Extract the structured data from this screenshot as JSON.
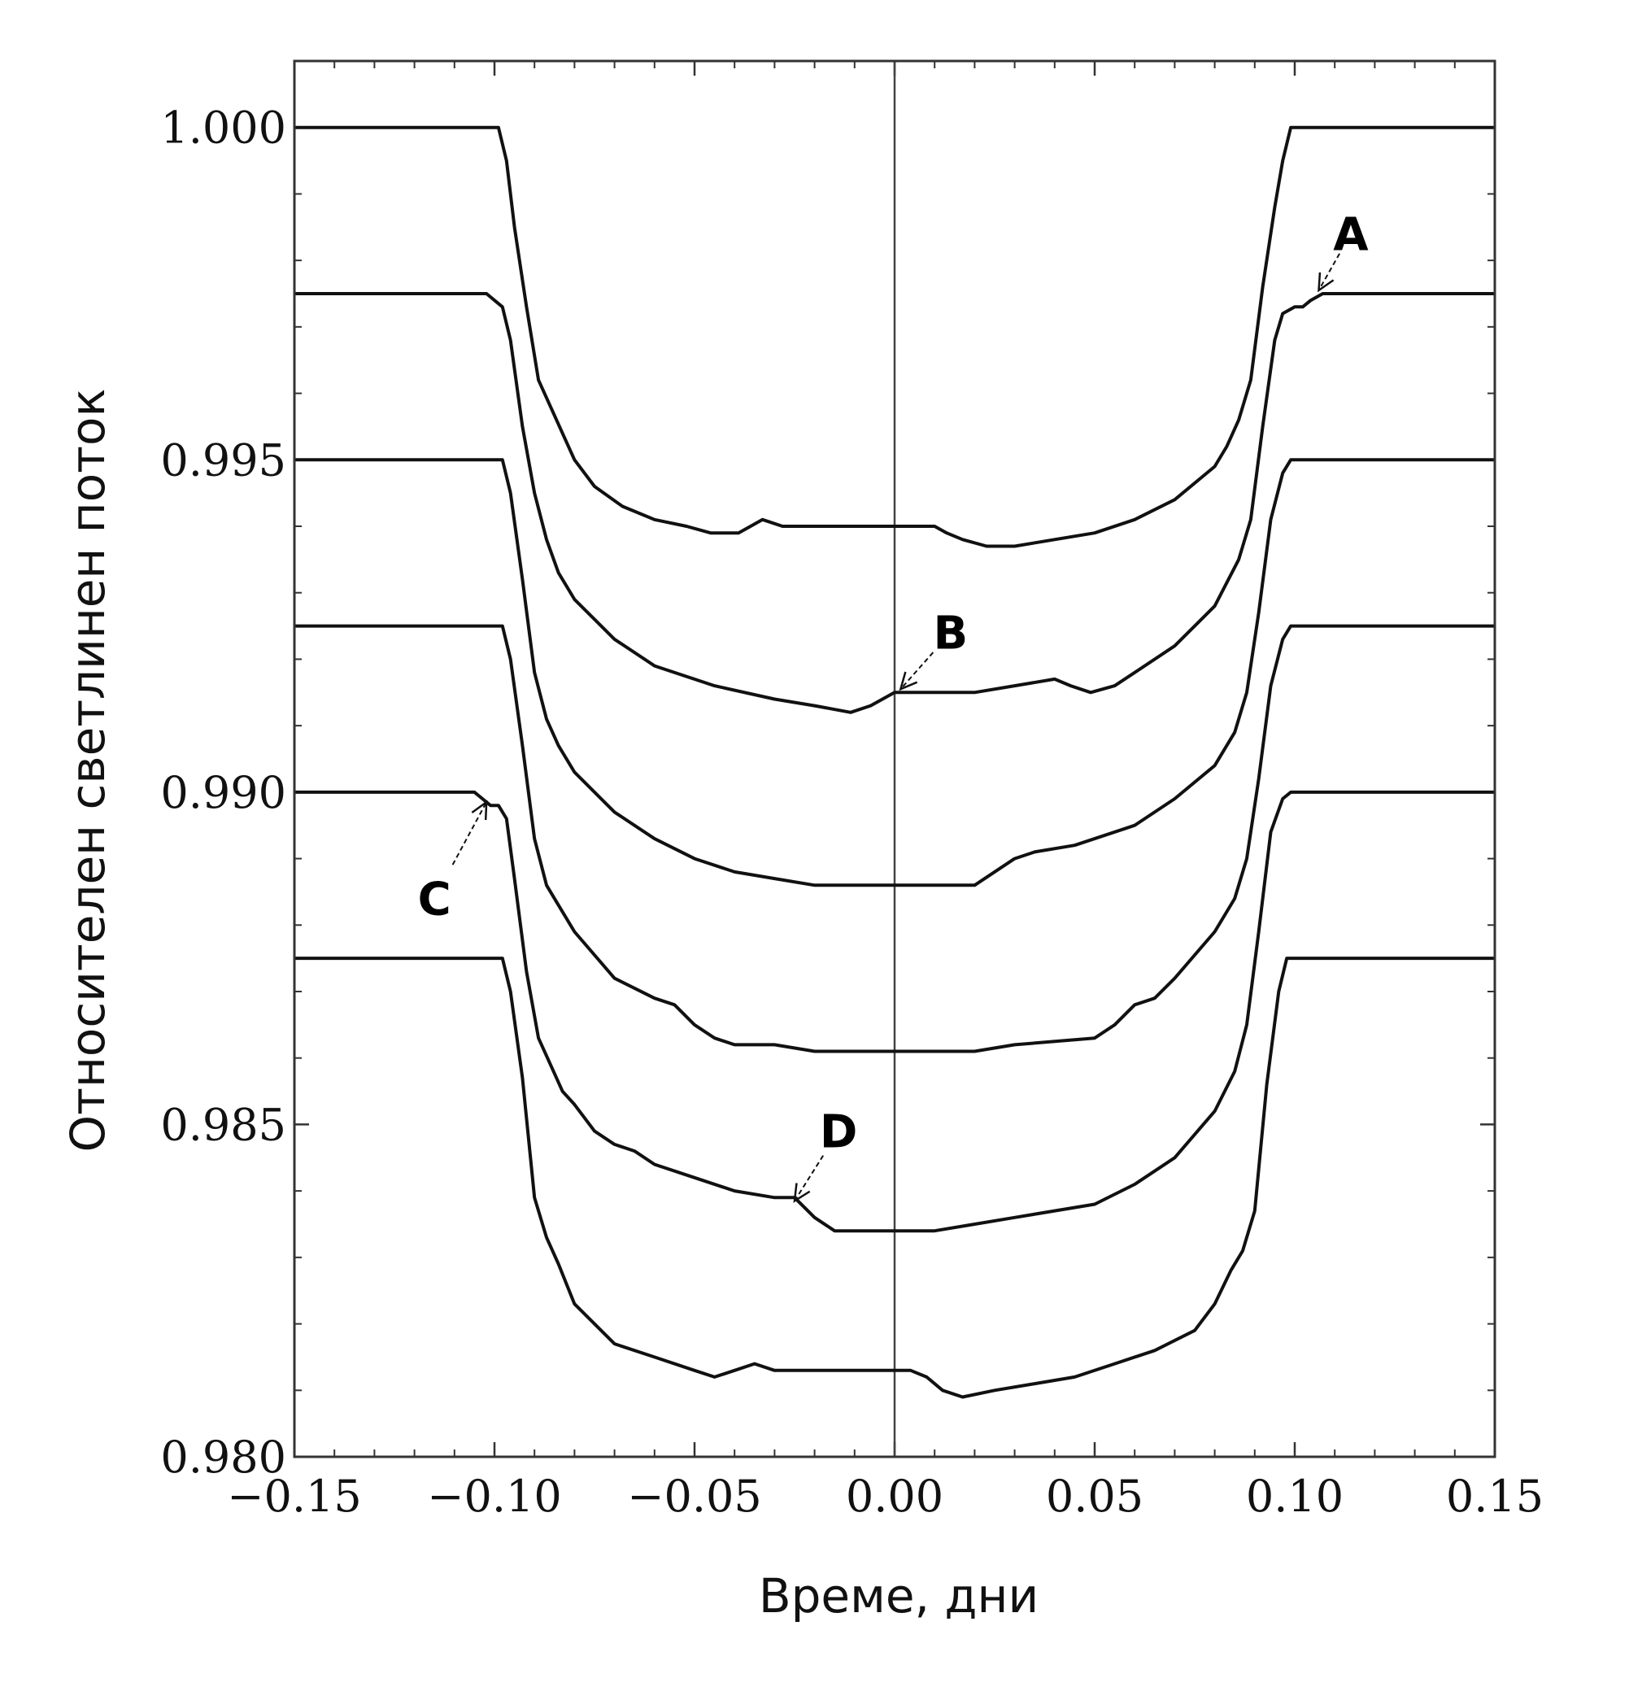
{
  "chart_data": {
    "type": "line",
    "title": "",
    "xlabel": "Време, дни",
    "ylabel": "Относителен светлинен поток",
    "xlim": [
      -0.15,
      0.15
    ],
    "ylim": [
      0.98,
      1.001
    ],
    "x_ticks": [
      -0.15,
      -0.1,
      -0.05,
      0.0,
      0.05,
      0.1,
      0.15
    ],
    "x_tick_labels": [
      "−0.15",
      "−0.10",
      "−0.05",
      "0.00",
      "0.05",
      "0.10",
      "0.15"
    ],
    "y_ticks": [
      0.98,
      0.985,
      0.99,
      0.995,
      1.0
    ],
    "y_tick_labels": [
      "0.980",
      "0.985",
      "0.990",
      "0.995",
      "1.000"
    ],
    "grid": false,
    "vertical_line_x": 0.0,
    "series": [
      {
        "x": [
          -0.15,
          -0.099,
          -0.097,
          -0.095,
          -0.092,
          -0.089,
          -0.086,
          -0.083,
          -0.08,
          -0.075,
          -0.068,
          -0.06,
          -0.052,
          -0.046,
          -0.039,
          -0.036,
          -0.033,
          -0.028,
          -0.02,
          -0.01,
          0.0,
          0.005,
          0.01,
          0.013,
          0.017,
          0.023,
          0.03,
          0.04,
          0.05,
          0.06,
          0.07,
          0.08,
          0.083,
          0.086,
          0.089,
          0.092,
          0.095,
          0.097,
          0.099,
          0.15
        ],
        "y": [
          1.0,
          1.0,
          0.9995,
          0.9985,
          0.9973,
          0.9962,
          0.9958,
          0.9954,
          0.995,
          0.9946,
          0.9943,
          0.9941,
          0.994,
          0.9939,
          0.9939,
          0.994,
          0.9941,
          0.994,
          0.994,
          0.994,
          0.994,
          0.994,
          0.994,
          0.9939,
          0.9938,
          0.9937,
          0.9937,
          0.9938,
          0.9939,
          0.9941,
          0.9944,
          0.9949,
          0.9952,
          0.9956,
          0.9962,
          0.9976,
          0.9988,
          0.9995,
          1.0,
          1.0
        ]
      },
      {
        "x": [
          -0.15,
          -0.102,
          -0.1,
          -0.098,
          -0.096,
          -0.093,
          -0.09,
          -0.087,
          -0.084,
          -0.08,
          -0.07,
          -0.06,
          -0.045,
          -0.03,
          -0.02,
          -0.011,
          -0.006,
          0.0,
          0.01,
          0.02,
          0.03,
          0.04,
          0.044,
          0.049,
          0.055,
          0.06,
          0.07,
          0.08,
          0.086,
          0.089,
          0.092,
          0.095,
          0.097,
          0.1,
          0.102,
          0.104,
          0.107,
          0.15
        ],
        "y": [
          0.9975,
          0.9975,
          0.9974,
          0.9973,
          0.9968,
          0.9955,
          0.9945,
          0.9938,
          0.9933,
          0.9929,
          0.9923,
          0.9919,
          0.9916,
          0.9914,
          0.9913,
          0.9912,
          0.9913,
          0.9915,
          0.9915,
          0.9915,
          0.9916,
          0.9917,
          0.9916,
          0.9915,
          0.9916,
          0.9918,
          0.9922,
          0.9928,
          0.9935,
          0.9941,
          0.9955,
          0.9968,
          0.9972,
          0.9973,
          0.9973,
          0.9974,
          0.9975,
          0.9975
        ]
      },
      {
        "x": [
          -0.15,
          -0.098,
          -0.096,
          -0.093,
          -0.09,
          -0.087,
          -0.084,
          -0.08,
          -0.07,
          -0.06,
          -0.05,
          -0.04,
          -0.03,
          -0.02,
          -0.01,
          0.0,
          0.01,
          0.02,
          0.025,
          0.03,
          0.035,
          0.045,
          0.06,
          0.07,
          0.08,
          0.085,
          0.088,
          0.091,
          0.094,
          0.097,
          0.099,
          0.15
        ],
        "y": [
          0.995,
          0.995,
          0.9945,
          0.9932,
          0.9918,
          0.9911,
          0.9907,
          0.9903,
          0.9897,
          0.9893,
          0.989,
          0.9888,
          0.9887,
          0.9886,
          0.9886,
          0.9886,
          0.9886,
          0.9886,
          0.9888,
          0.989,
          0.9891,
          0.9892,
          0.9895,
          0.9899,
          0.9904,
          0.9909,
          0.9915,
          0.9927,
          0.9941,
          0.9948,
          0.995,
          0.995
        ]
      },
      {
        "x": [
          -0.15,
          -0.098,
          -0.096,
          -0.093,
          -0.09,
          -0.087,
          -0.084,
          -0.08,
          -0.07,
          -0.06,
          -0.055,
          -0.05,
          -0.045,
          -0.04,
          -0.03,
          -0.02,
          -0.01,
          0.0,
          0.01,
          0.02,
          0.03,
          0.05,
          0.055,
          0.06,
          0.065,
          0.07,
          0.08,
          0.085,
          0.088,
          0.091,
          0.094,
          0.097,
          0.099,
          0.15
        ],
        "y": [
          0.9925,
          0.9925,
          0.992,
          0.9907,
          0.9893,
          0.9886,
          0.9883,
          0.9879,
          0.9872,
          0.9869,
          0.9868,
          0.9865,
          0.9863,
          0.9862,
          0.9862,
          0.9861,
          0.9861,
          0.9861,
          0.9861,
          0.9861,
          0.9862,
          0.9863,
          0.9865,
          0.9868,
          0.9869,
          0.9872,
          0.9879,
          0.9884,
          0.989,
          0.9902,
          0.9916,
          0.9923,
          0.9925,
          0.9925
        ]
      },
      {
        "x": [
          -0.15,
          -0.105,
          -0.103,
          -0.101,
          -0.099,
          -0.097,
          -0.095,
          -0.092,
          -0.089,
          -0.086,
          -0.083,
          -0.08,
          -0.075,
          -0.07,
          -0.065,
          -0.06,
          -0.05,
          -0.04,
          -0.03,
          -0.025,
          -0.02,
          -0.015,
          -0.01,
          0.0,
          0.01,
          0.02,
          0.03,
          0.05,
          0.06,
          0.07,
          0.08,
          0.085,
          0.088,
          0.091,
          0.094,
          0.097,
          0.099,
          0.15
        ],
        "y": [
          0.99,
          0.99,
          0.9899,
          0.9898,
          0.9898,
          0.9896,
          0.9887,
          0.9873,
          0.9863,
          0.9859,
          0.9855,
          0.9853,
          0.9849,
          0.9847,
          0.9846,
          0.9844,
          0.9842,
          0.984,
          0.9839,
          0.9839,
          0.9836,
          0.9834,
          0.9834,
          0.9834,
          0.9834,
          0.9835,
          0.9836,
          0.9838,
          0.9841,
          0.9845,
          0.9852,
          0.9858,
          0.9865,
          0.9879,
          0.9894,
          0.9899,
          0.99,
          0.99
        ]
      },
      {
        "x": [
          -0.15,
          -0.098,
          -0.096,
          -0.093,
          -0.09,
          -0.087,
          -0.084,
          -0.08,
          -0.075,
          -0.07,
          -0.06,
          -0.05,
          -0.045,
          -0.04,
          -0.035,
          -0.03,
          -0.02,
          -0.01,
          0.0,
          0.004,
          0.008,
          0.012,
          0.017,
          0.025,
          0.035,
          0.045,
          0.055,
          0.065,
          0.075,
          0.08,
          0.084,
          0.087,
          0.09,
          0.093,
          0.096,
          0.098,
          0.15
        ],
        "y": [
          0.9875,
          0.9875,
          0.987,
          0.9857,
          0.9839,
          0.9833,
          0.9829,
          0.9823,
          0.982,
          0.9817,
          0.9815,
          0.9813,
          0.9812,
          0.9813,
          0.9814,
          0.9813,
          0.9813,
          0.9813,
          0.9813,
          0.9813,
          0.9812,
          0.981,
          0.9809,
          0.981,
          0.9811,
          0.9812,
          0.9814,
          0.9816,
          0.9819,
          0.9823,
          0.9828,
          0.9831,
          0.9837,
          0.9856,
          0.987,
          0.9875,
          0.9875
        ]
      }
    ],
    "annotations": [
      {
        "label": "A",
        "x": 0.114,
        "y": 0.9984
      },
      {
        "label": "B",
        "x": 0.014,
        "y": 0.9924
      },
      {
        "label": "C",
        "x": -0.115,
        "y": 0.9884
      },
      {
        "label": "D",
        "x": -0.014,
        "y": 0.9849
      }
    ]
  }
}
